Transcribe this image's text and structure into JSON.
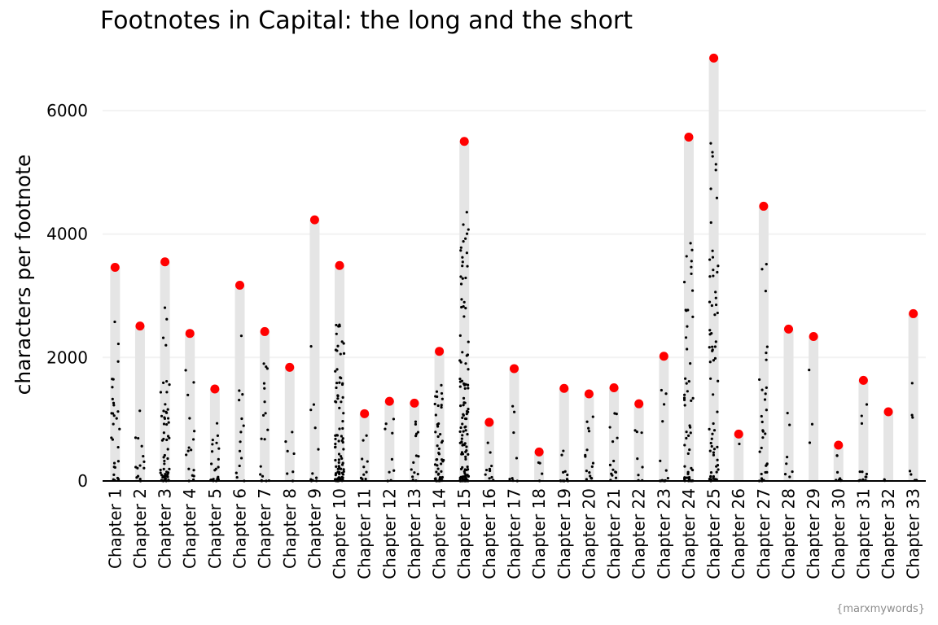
{
  "chart_data": {
    "type": "bar",
    "title": "Footnotes in Capital: the long and the short",
    "ylabel": "characters per footnote",
    "xlabel": "",
    "ylim": [
      0,
      7000
    ],
    "yticks": [
      0,
      2000,
      4000,
      6000
    ],
    "ytick_labels": [
      "0",
      "2000",
      "4000",
      "6000"
    ],
    "grid": true,
    "legend": "none",
    "caption": "{marxmywords}",
    "colors": {
      "bar": "#e5e5e5",
      "max_point": "#ff0000",
      "point": "#000000",
      "grid": "#f2f2f2",
      "axis": "#000000"
    },
    "categories": [
      "Chapter 1",
      "Chapter 2",
      "Chapter 3",
      "Chapter 4",
      "Chapter 5",
      "Chapter 6",
      "Chapter 7",
      "Chapter 8",
      "Chapter 9",
      "Chapter 10",
      "Chapter 11",
      "Chapter 12",
      "Chapter 13",
      "Chapter 14",
      "Chapter 15",
      "Chapter 16",
      "Chapter 17",
      "Chapter 18",
      "Chapter 19",
      "Chapter 20",
      "Chapter 21",
      "Chapter 22",
      "Chapter 23",
      "Chapter 24",
      "Chapter 25",
      "Chapter 26",
      "Chapter 27",
      "Chapter 28",
      "Chapter 29",
      "Chapter 30",
      "Chapter 31",
      "Chapter 32",
      "Chapter 33"
    ],
    "max_values": [
      3460,
      2510,
      3550,
      2390,
      1490,
      3170,
      2420,
      1840,
      4230,
      3490,
      1090,
      1290,
      1260,
      2100,
      5500,
      950,
      1820,
      470,
      1500,
      1410,
      1510,
      1250,
      2020,
      5570,
      6850,
      760,
      4450,
      2460,
      2340,
      580,
      1630,
      1120,
      2710
    ],
    "footnote_counts": [
      28,
      14,
      60,
      16,
      22,
      14,
      18,
      7,
      12,
      90,
      10,
      9,
      14,
      50,
      130,
      10,
      8,
      4,
      12,
      15,
      14,
      8,
      15,
      55,
      70,
      1,
      32,
      7,
      3,
      8,
      12,
      2,
      8
    ]
  }
}
